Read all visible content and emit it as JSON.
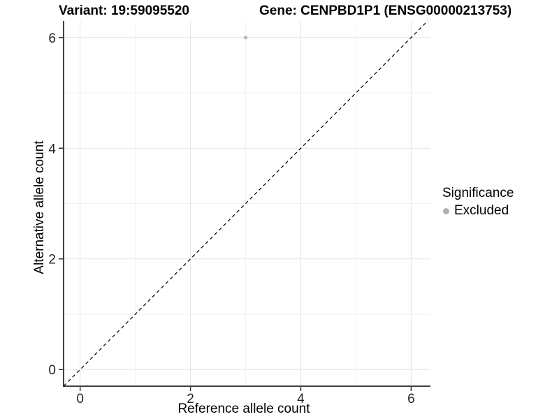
{
  "titles": {
    "variant": "Variant: 19:59095520",
    "gene": "Gene: CENPBD1P1 (ENSG00000213753)"
  },
  "chart_data": {
    "type": "scatter",
    "xlabel": "Reference allele count",
    "ylabel": "Alternative allele count",
    "xlim": [
      -0.3,
      6.35
    ],
    "ylim": [
      -0.3,
      6.3
    ],
    "x_ticks": [
      0,
      2,
      4,
      6
    ],
    "y_ticks": [
      0,
      2,
      4,
      6
    ],
    "x_minor_ticks": [
      1,
      3,
      5
    ],
    "y_minor_ticks": [
      1,
      3,
      5
    ],
    "grid": true,
    "points": [
      {
        "x": 3,
        "y": 6,
        "series": "Excluded"
      }
    ],
    "identity_line": {
      "style": "dashed",
      "color": "#000000",
      "equation": "y = x"
    },
    "legend": {
      "title": "Significance",
      "position": "right",
      "items": [
        {
          "label": "Excluded",
          "color": "#b0b0b0"
        }
      ]
    },
    "colors": {
      "point": "#b9b9b9",
      "grid_major": "#e4e4e4",
      "grid_minor": "#f2f2f2",
      "axis_line": "#404040",
      "tick": "#333333",
      "tick_label": "#262626"
    }
  }
}
